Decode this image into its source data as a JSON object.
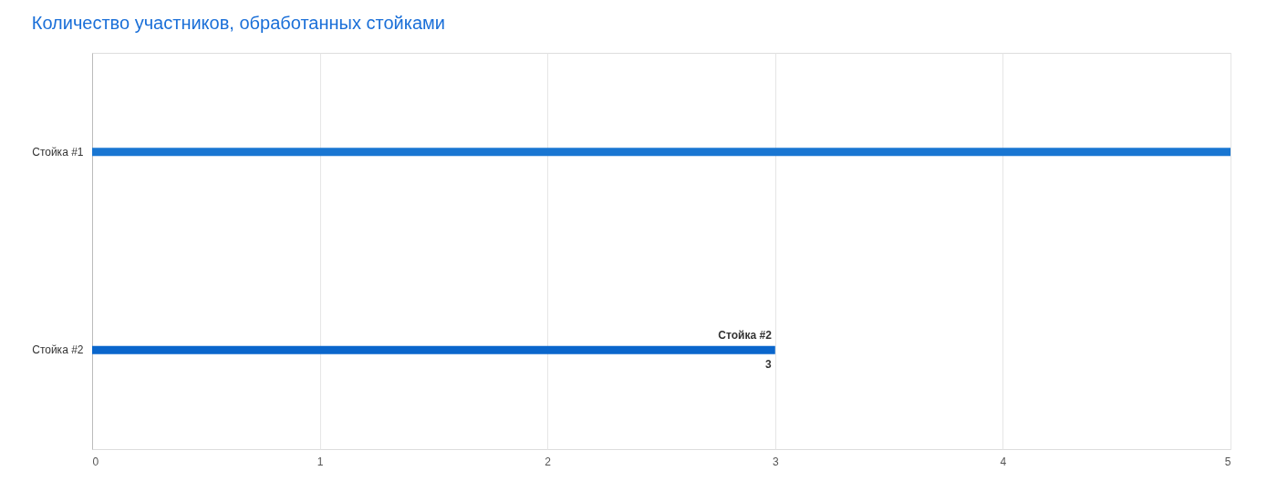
{
  "chart_data": {
    "type": "bar",
    "orientation": "horizontal",
    "title": "Количество участников, обработанных стойками",
    "categories": [
      "Стойка #1",
      "Стойка #2"
    ],
    "values": [
      5,
      3
    ],
    "colors": [
      "#1976d2",
      "#0a66cc"
    ],
    "xlim": [
      0,
      5
    ],
    "xticks": [
      0,
      1,
      2,
      3,
      4,
      5
    ],
    "grid": "x",
    "annotations": [
      {
        "text": "Стойка #2",
        "x": 3,
        "y": "Стойка #2"
      },
      {
        "text": "3",
        "x": 3,
        "y": "Стойка #2"
      }
    ]
  }
}
